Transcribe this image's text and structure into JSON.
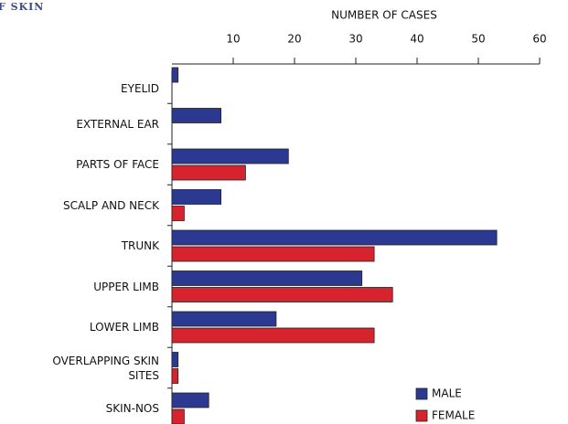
{
  "chart_data": {
    "type": "bar",
    "orientation": "horizontal",
    "title": "F SKIN",
    "x_label": "NUMBER OF CASES",
    "categories": [
      "EYELID",
      "EXTERNAL EAR",
      "PARTS OF FACE",
      "SCALP AND NECK",
      "TRUNK",
      "UPPER LIMB",
      "LOWER LIMB",
      "OVERLAPPING SKIN SITES",
      "SKIN-NOS"
    ],
    "series": [
      {
        "name": "MALE",
        "color": "#2b3990",
        "values": [
          1,
          8,
          19,
          8,
          53,
          31,
          17,
          1,
          6
        ]
      },
      {
        "name": "FEMALE",
        "color": "#d7232e",
        "values": [
          0,
          0,
          12,
          2,
          33,
          36,
          33,
          1,
          2
        ]
      }
    ],
    "xlim": [
      0,
      60
    ],
    "xticks": [
      10,
      20,
      30,
      40,
      50,
      60
    ],
    "legend": "lower right"
  }
}
